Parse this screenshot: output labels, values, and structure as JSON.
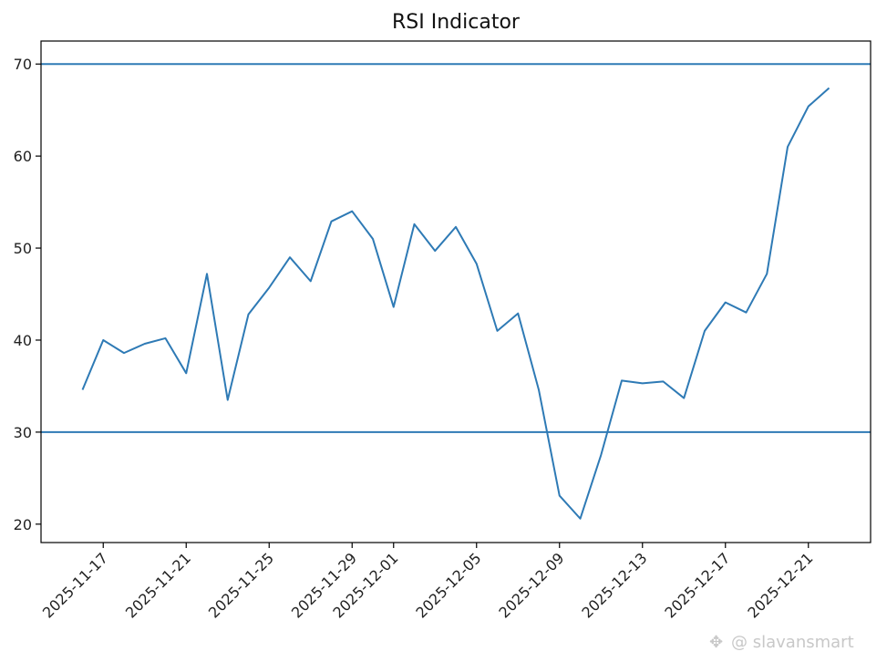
{
  "chart_data": {
    "type": "line",
    "title": "RSI Indicator",
    "xlabel": "",
    "ylabel": "",
    "ylim": [
      18,
      72.5
    ],
    "xlim": [
      "2025-11-14",
      "2025-12-24"
    ],
    "x_ticks": [
      "2025-11-17",
      "2025-11-21",
      "2025-11-25",
      "2025-11-29",
      "2025-12-01",
      "2025-12-05",
      "2025-12-09",
      "2025-12-13",
      "2025-12-17",
      "2025-12-21"
    ],
    "y_ticks": [
      20,
      30,
      40,
      50,
      60,
      70
    ],
    "grid": false,
    "legend": "none",
    "series": [
      {
        "color": "#2e7ab5",
        "x": [
          "2025-11-16",
          "2025-11-17",
          "2025-11-18",
          "2025-11-19",
          "2025-11-20",
          "2025-11-21",
          "2025-11-22",
          "2025-11-23",
          "2025-11-24",
          "2025-11-25",
          "2025-11-26",
          "2025-11-27",
          "2025-11-28",
          "2025-11-29",
          "2025-11-30",
          "2025-12-01",
          "2025-12-02",
          "2025-12-03",
          "2025-12-04",
          "2025-12-05",
          "2025-12-06",
          "2025-12-07",
          "2025-12-08",
          "2025-12-09",
          "2025-12-10",
          "2025-12-11",
          "2025-12-12",
          "2025-12-13",
          "2025-12-14",
          "2025-12-15",
          "2025-12-16",
          "2025-12-17",
          "2025-12-18",
          "2025-12-19",
          "2025-12-20",
          "2025-12-21",
          "2025-12-22"
        ],
        "values": [
          34.6,
          40.0,
          38.6,
          39.6,
          40.2,
          36.4,
          47.2,
          33.5,
          42.8,
          45.7,
          49.0,
          46.4,
          52.9,
          54.0,
          51.0,
          43.6,
          52.6,
          49.7,
          52.3,
          48.3,
          41.0,
          42.9,
          34.6,
          23.1,
          20.6,
          27.5,
          35.6,
          35.3,
          35.5,
          33.7,
          41.0,
          44.1,
          43.0,
          47.2,
          61.0,
          65.4,
          67.4
        ]
      }
    ],
    "reference_lines": [
      {
        "y": 70,
        "color": "#2e7ab5"
      },
      {
        "y": 30,
        "color": "#2e7ab5"
      }
    ]
  },
  "watermark": {
    "text": "@ slavansmart"
  }
}
